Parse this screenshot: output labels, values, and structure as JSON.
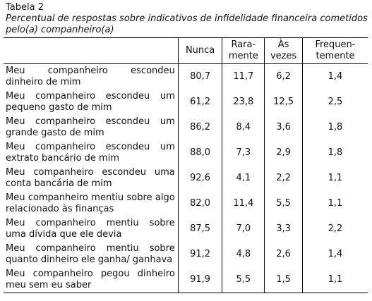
{
  "header": {
    "title": "Tabela 2",
    "caption": "Percentual de respostas sobre indicativos de infidelidade financeira cometidos pelo(a) companheiro(a)"
  },
  "table": {
    "columns": [
      "Nunca",
      "Rara-\nmente",
      "Às\nvezes",
      "Frequen-\ntemente"
    ],
    "rows": [
      {
        "label": "Meu companheiro escondeu dinheiro de mim",
        "values": [
          "80,7",
          "11,7",
          "6,2",
          "1,4"
        ]
      },
      {
        "label": "Meu companheiro escondeu um pequeno gasto de mim",
        "values": [
          "61,2",
          "23,8",
          "12,5",
          "2,5"
        ]
      },
      {
        "label": "Meu companheiro escondeu um grande gasto de mim",
        "values": [
          "86,2",
          "8,4",
          "3,6",
          "1,8"
        ]
      },
      {
        "label": "Meu companheiro escondeu um extrato bancário de mim",
        "values": [
          "88,0",
          "7,3",
          "2,9",
          "1,8"
        ]
      },
      {
        "label": "Meu companheiro escondeu uma conta bancária de mim",
        "values": [
          "92,6",
          "4,1",
          "2,2",
          "1,1"
        ]
      },
      {
        "label": "Meu companheiro mentiu sobre algo relacionado às finanças",
        "values": [
          "82,0",
          "11,4",
          "5,5",
          "1,1"
        ]
      },
      {
        "label": "Meu companheiro mentiu sobre uma dívida que ele devia",
        "values": [
          "87,5",
          "7,0",
          "3,3",
          "2,2"
        ]
      },
      {
        "label": "Meu companheiro mentiu sobre quanto dinheiro ele ganha/ ganhava",
        "values": [
          "91,2",
          "4,8",
          "2,6",
          "1,4"
        ]
      },
      {
        "label": "Meu companheiro pegou dinheiro meu sem eu saber",
        "values": [
          "91,9",
          "5,5",
          "1,5",
          "1,1"
        ]
      }
    ]
  }
}
